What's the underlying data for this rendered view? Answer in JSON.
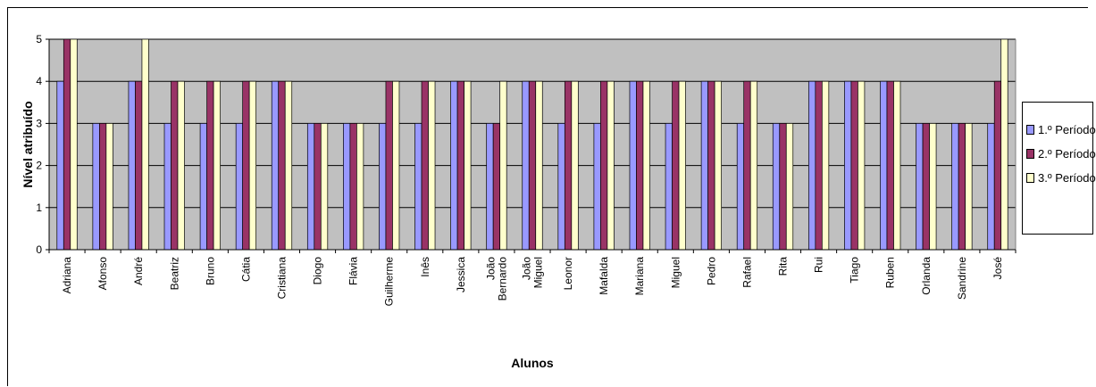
{
  "chart_data": {
    "type": "bar",
    "title": "",
    "xlabel": "Alunos",
    "ylabel": "Nível atribuído",
    "ylim": [
      0,
      5
    ],
    "yticks": [
      "0",
      "1",
      "2",
      "3",
      "4",
      "5"
    ],
    "grid": true,
    "legend_position": "right",
    "plot_background": "#c0c0c0",
    "categories": [
      "Adriana",
      "Afonso",
      "André",
      "Beatriz",
      "Bruno",
      "Cátia",
      "Cristiana",
      "Diogo",
      "Flávia",
      "Guilherme",
      "Inês",
      "Jessica",
      "João Bernardo",
      "João Miguel",
      "Leonor",
      "Mafalda",
      "Mariana",
      "Miguel",
      "Pedro",
      "Rafael",
      "Rita",
      "Rui",
      "Tiago",
      "Ruben",
      "Orlanda",
      "Sandrine",
      "José"
    ],
    "series": [
      {
        "name": "1.º Período",
        "color": "#9999ff",
        "values": [
          4,
          3,
          4,
          3,
          3,
          3,
          4,
          3,
          3,
          3,
          3,
          4,
          3,
          4,
          3,
          3,
          4,
          3,
          4,
          3,
          3,
          4,
          4,
          4,
          3,
          3,
          3
        ]
      },
      {
        "name": "2.º Período",
        "color": "#993366",
        "values": [
          5,
          3,
          4,
          4,
          4,
          4,
          4,
          3,
          3,
          4,
          4,
          4,
          3,
          4,
          4,
          4,
          4,
          4,
          4,
          4,
          3,
          4,
          4,
          4,
          3,
          3,
          4
        ]
      },
      {
        "name": "3.º Período",
        "color": "#ffffcc",
        "values": [
          5,
          3,
          5,
          4,
          4,
          4,
          4,
          3,
          3,
          4,
          4,
          4,
          4,
          4,
          4,
          4,
          4,
          4,
          4,
          4,
          3,
          4,
          4,
          4,
          3,
          3,
          5
        ]
      }
    ]
  }
}
